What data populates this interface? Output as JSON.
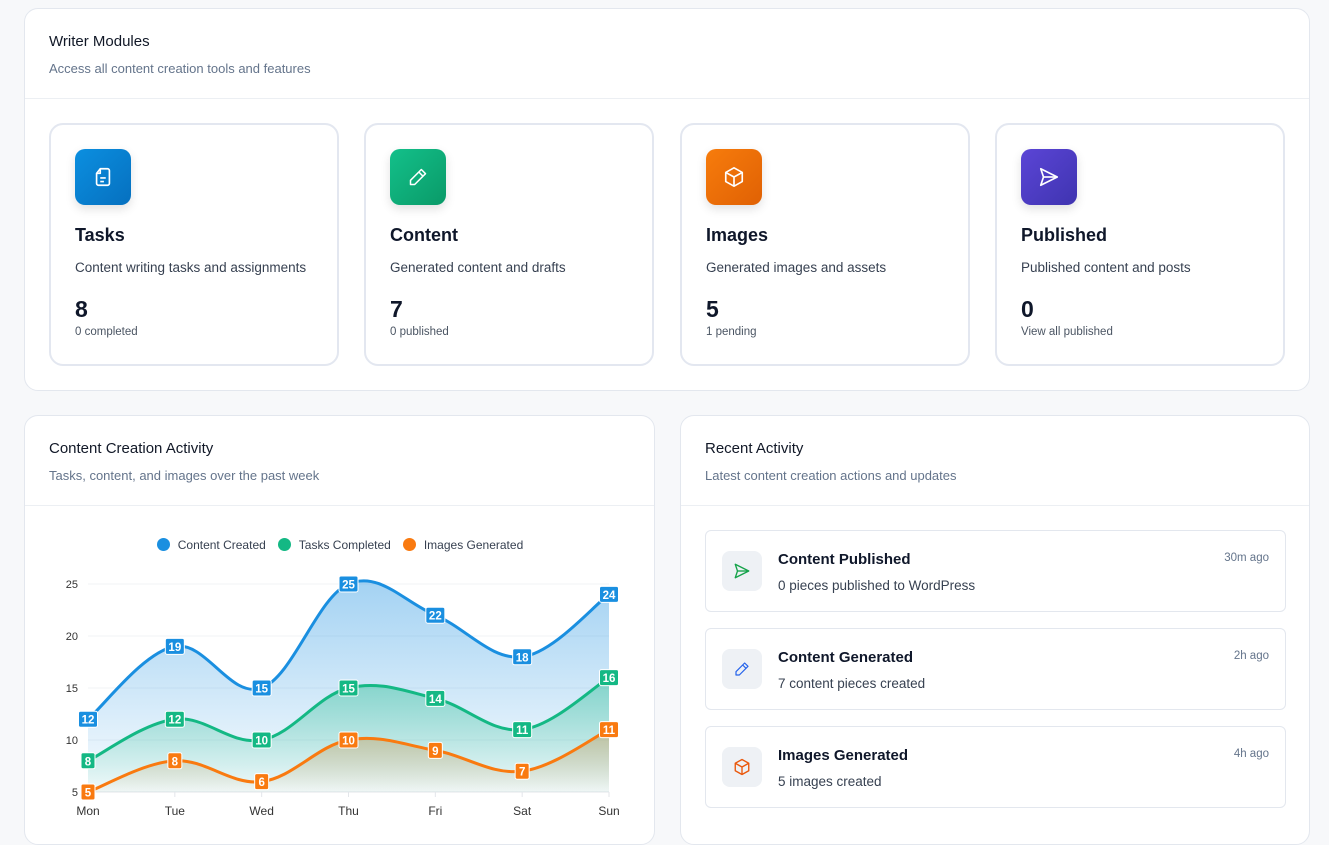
{
  "modules": {
    "title": "Writer Modules",
    "subtitle": "Access all content creation tools and features",
    "items": [
      {
        "title": "Tasks",
        "desc": "Content writing tasks and assignments",
        "count": "8",
        "sub": "0 completed",
        "icon": "document-icon",
        "color": "#0a84d6"
      },
      {
        "title": "Content",
        "desc": "Generated content and drafts",
        "count": "7",
        "sub": "0 published",
        "icon": "pencil-icon",
        "color": "#10b47c"
      },
      {
        "title": "Images",
        "desc": "Generated images and assets",
        "count": "5",
        "sub": "1 pending",
        "icon": "cube-icon",
        "color": "#f07005"
      },
      {
        "title": "Published",
        "desc": "Published content and posts",
        "count": "0",
        "sub": "View all published",
        "icon": "send-icon",
        "color": "#4f46c9"
      }
    ]
  },
  "activity_chart": {
    "title": "Content Creation Activity",
    "subtitle": "Tasks, content, and images over the past week"
  },
  "chart_data": {
    "type": "area",
    "categories": [
      "Mon",
      "Tue",
      "Wed",
      "Thu",
      "Fri",
      "Sat",
      "Sun"
    ],
    "series": [
      {
        "name": "Content Created",
        "color": "#1a8fe0",
        "values": [
          12,
          19,
          15,
          25,
          22,
          18,
          24
        ]
      },
      {
        "name": "Tasks Completed",
        "color": "#14b884",
        "values": [
          8,
          12,
          10,
          15,
          14,
          11,
          16
        ]
      },
      {
        "name": "Images Generated",
        "color": "#f97a10",
        "values": [
          5,
          8,
          6,
          10,
          9,
          7,
          11
        ]
      }
    ],
    "yticks": [
      5,
      10,
      15,
      20,
      25
    ],
    "ylim": [
      5,
      25
    ],
    "legend": "top",
    "grid": true
  },
  "recent": {
    "title": "Recent Activity",
    "subtitle": "Latest content creation actions and updates",
    "items": [
      {
        "title": "Content Published",
        "desc": "0 pieces published to WordPress",
        "time": "30m ago",
        "icon": "send-icon",
        "color": "#16a34a"
      },
      {
        "title": "Content Generated",
        "desc": "7 content pieces created",
        "time": "2h ago",
        "icon": "pencil-icon",
        "color": "#2563eb"
      },
      {
        "title": "Images Generated",
        "desc": "5 images created",
        "time": "4h ago",
        "icon": "cube-icon",
        "color": "#ea580c"
      }
    ]
  }
}
